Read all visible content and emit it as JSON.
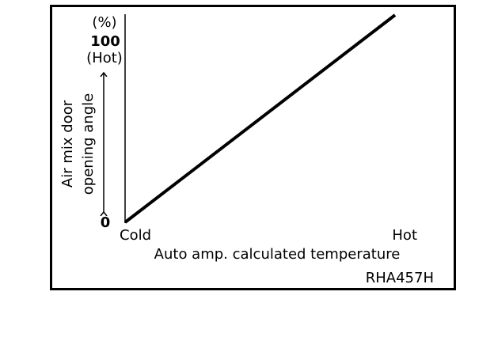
{
  "chart_data": {
    "type": "line",
    "y_label_lines": [
      "Air mix door",
      "opening angle"
    ],
    "x_label": "Auto amp. calculated temperature",
    "y_unit": "(%)",
    "y_top_note": "(Hot)",
    "categories": [
      "Cold",
      "Hot"
    ],
    "values": [
      0,
      100
    ],
    "color": "#000000",
    "ylim": [
      0,
      100
    ],
    "yticks": [
      0,
      100
    ],
    "code": "RHA457H"
  }
}
